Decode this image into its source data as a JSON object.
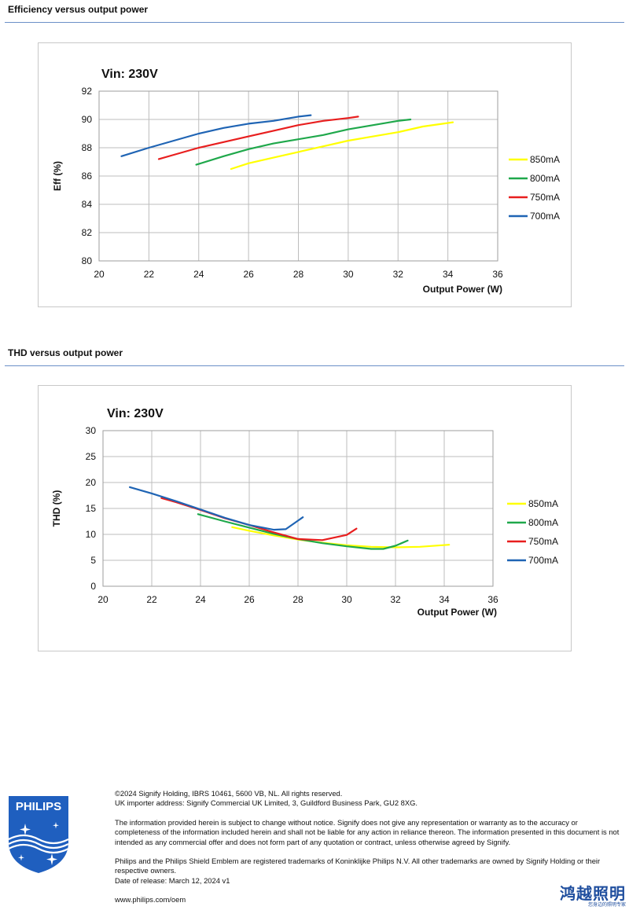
{
  "sections": {
    "efficiency_title": "Efficiency versus output power",
    "thd_title": "THD versus output power"
  },
  "chart_data": [
    {
      "type": "line",
      "title": "Vin: 230V",
      "xlabel": "Output Power (W)",
      "ylabel": "Eff  (%)",
      "xlim": [
        20,
        36
      ],
      "ylim": [
        80,
        92
      ],
      "xticks": [
        20,
        22,
        24,
        26,
        28,
        30,
        32,
        34,
        36
      ],
      "yticks": [
        80,
        82,
        84,
        86,
        88,
        90,
        92
      ],
      "grid": true,
      "legend_position": "right",
      "series": [
        {
          "name": "850mA",
          "color": "#ffff00",
          "x": [
            25.3,
            26,
            27,
            28,
            29,
            30,
            31,
            32,
            33,
            34.2
          ],
          "y": [
            86.5,
            86.9,
            87.3,
            87.7,
            88.1,
            88.5,
            88.8,
            89.1,
            89.5,
            89.8
          ]
        },
        {
          "name": "800mA",
          "color": "#1fa84b",
          "x": [
            23.9,
            25,
            26,
            27,
            28,
            29,
            30,
            31,
            32,
            32.5
          ],
          "y": [
            86.8,
            87.4,
            87.9,
            88.3,
            88.6,
            88.9,
            89.3,
            89.6,
            89.9,
            90.0
          ]
        },
        {
          "name": "750mA",
          "color": "#e81e1e",
          "x": [
            22.4,
            23,
            24,
            25,
            26,
            27,
            28,
            29,
            30,
            30.4
          ],
          "y": [
            87.2,
            87.5,
            88.0,
            88.4,
            88.8,
            89.2,
            89.6,
            89.9,
            90.1,
            90.2
          ]
        },
        {
          "name": "700mA",
          "color": "#1f64b4",
          "x": [
            20.9,
            22,
            23,
            24,
            25,
            26,
            27,
            28,
            28.5
          ],
          "y": [
            87.4,
            88.0,
            88.5,
            89.0,
            89.4,
            89.7,
            89.9,
            90.2,
            90.3
          ]
        }
      ]
    },
    {
      "type": "line",
      "title": "Vin: 230V",
      "xlabel": "Output Power (W)",
      "ylabel": "THD  (%)",
      "xlim": [
        20,
        36
      ],
      "ylim": [
        0,
        30
      ],
      "xticks": [
        20,
        22,
        24,
        26,
        28,
        30,
        32,
        34,
        36
      ],
      "yticks": [
        0,
        5,
        10,
        15,
        20,
        25,
        30
      ],
      "grid": true,
      "legend_position": "right",
      "series": [
        {
          "name": "850mA",
          "color": "#ffff00",
          "x": [
            25.3,
            26,
            27,
            28,
            29,
            30,
            31,
            32,
            33,
            34.2
          ],
          "y": [
            11.4,
            10.7,
            9.8,
            9.0,
            8.4,
            7.9,
            7.6,
            7.5,
            7.6,
            8.0
          ]
        },
        {
          "name": "800mA",
          "color": "#1fa84b",
          "x": [
            23.9,
            25,
            26,
            27,
            28,
            29,
            30,
            31,
            31.5,
            32,
            32.5
          ],
          "y": [
            13.9,
            12.5,
            11.3,
            10.1,
            9.1,
            8.3,
            7.7,
            7.2,
            7.2,
            7.8,
            8.8
          ]
        },
        {
          "name": "750mA",
          "color": "#e81e1e",
          "x": [
            22.4,
            23,
            24,
            25,
            26,
            27,
            28,
            29,
            30,
            30.4
          ],
          "y": [
            17.0,
            16.2,
            14.7,
            13.1,
            11.8,
            10.4,
            9.1,
            8.9,
            9.9,
            11.1
          ]
        },
        {
          "name": "700mA",
          "color": "#1f64b4",
          "x": [
            21.1,
            22,
            23,
            24,
            25,
            26,
            27,
            27.5,
            28.2
          ],
          "y": [
            19.1,
            17.9,
            16.4,
            14.8,
            13.2,
            11.8,
            10.9,
            11.0,
            13.3
          ]
        }
      ]
    }
  ],
  "footer": {
    "copyright": "©2024 Signify Holding, IBRS 10461, 5600 VB, NL. All rights reserved.",
    "importer": "UK importer address: Signify Commercial UK Limited, 3, Guildford Business Park, GU2 8XG.",
    "disclaimer": "The information provided herein is subject to change without notice. Signify does not give any representation or warranty as to the accuracy or completeness of the information included herein and shall not be liable for any action in reliance thereon. The information presented in this document is not intended as any commercial offer and does not form part of any quotation or contract, unless otherwise agreed by Signify.",
    "trademarks": "Philips and the Philips Shield Emblem are registered trademarks of Koninklijke Philips N.V. All other trademarks are owned by Signify Holding or their respective owners.",
    "release_date": "Date of release: March 12, 2024 v1",
    "website": "www.philips.com/oem"
  },
  "logo": {
    "text": "PHILIPS",
    "icon": "philips-shield-icon",
    "color": "#1f5fbf"
  },
  "watermark": {
    "main": "鸿越照明",
    "sub": "您身边的照明专家",
    "color": "#1f4e9e"
  }
}
